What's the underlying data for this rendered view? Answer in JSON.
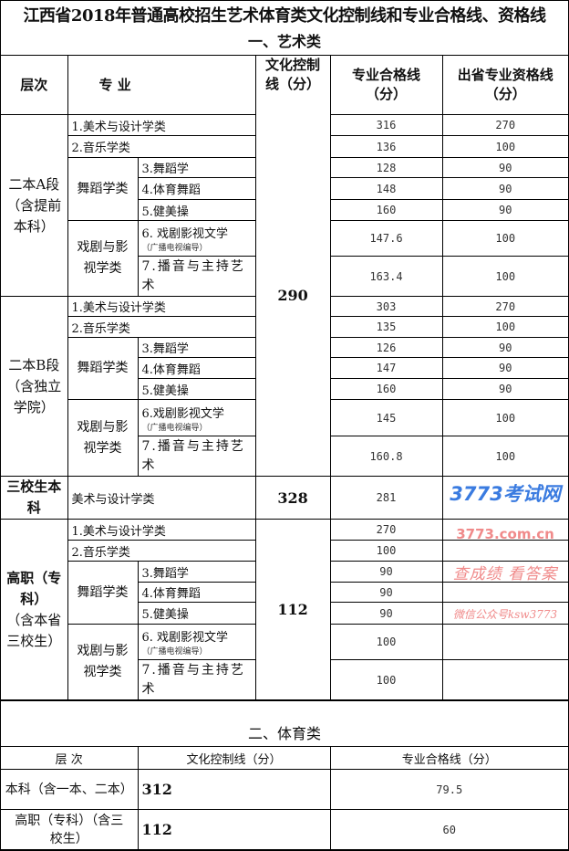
{
  "title": "江西省2018年普通高校招生艺术体育类文化控制线和专业合格线、资格线",
  "art": {
    "section": "一、艺术类",
    "headers": {
      "level": "层次",
      "major": "专 业",
      "culture": "文化控制线（分）",
      "pro": "专业合格线（分）",
      "out": "出省专业资格线（分）"
    },
    "group_a": {
      "level": "二本A段（含提前本科）",
      "r1": {
        "name": "1.美术与设计学类",
        "pro": "316",
        "out": "270"
      },
      "r2": {
        "name": "2.音乐学类",
        "pro": "136",
        "out": "100"
      },
      "dance": "舞蹈学类",
      "r3": {
        "name": "3.舞蹈学",
        "pro": "128",
        "out": "90"
      },
      "r4": {
        "name": "4.体育舞蹈",
        "pro": "148",
        "out": "90"
      },
      "r5": {
        "name": "5.健美操",
        "pro": "160",
        "out": "90"
      },
      "drama": "戏剧与影视学类",
      "r6": {
        "name": "6. 戏剧影视文学",
        "note": "（广播电视编导）",
        "pro": "147.6",
        "out": "100"
      },
      "r7": {
        "name": "7.播音与主持艺术",
        "pro": "163.4",
        "out": "100"
      }
    },
    "culture_ab": "290",
    "group_b": {
      "level": "二本B段（含独立学院）",
      "r1": {
        "name": "1.美术与设计学类",
        "pro": "303",
        "out": "270"
      },
      "r2": {
        "name": "2.音乐学类",
        "pro": "135",
        "out": "100"
      },
      "dance": "舞蹈学类",
      "r3": {
        "name": "3.舞蹈学",
        "pro": "126",
        "out": "90"
      },
      "r4": {
        "name": "4.体育舞蹈",
        "pro": "147",
        "out": "90"
      },
      "r5": {
        "name": "5.健美操",
        "pro": "160",
        "out": "90"
      },
      "drama": "戏剧与影视学类",
      "r6": {
        "name": "6.戏剧影视文学",
        "note": "（广播电视编导）",
        "pro": "145",
        "out": "100"
      },
      "r7": {
        "name": "7.播音与主持艺术",
        "pro": "160.8",
        "out": "100"
      }
    },
    "group_s": {
      "level": "三校生本科",
      "name": "美术与设计学类",
      "culture": "328",
      "pro": "281"
    },
    "group_h": {
      "level_bold": "高职（专科）",
      "level": "（含本省三校生）",
      "culture": "112",
      "r1": {
        "name": "1.美术与设计学类",
        "pro": "270"
      },
      "r2": {
        "name": "2.音乐学类",
        "pro": "100"
      },
      "dance": "舞蹈学类",
      "r3": {
        "name": "3.舞蹈学",
        "pro": "90"
      },
      "r4": {
        "name": "4.体育舞蹈",
        "pro": "90"
      },
      "r5": {
        "name": "5.健美操",
        "pro": "90"
      },
      "drama": "戏剧与影视学类",
      "r6": {
        "name": "6. 戏剧影视文学",
        "note": "（广播电视编导）",
        "pro": "100"
      },
      "r7": {
        "name": "7.播音与主持艺术",
        "pro": "100"
      }
    }
  },
  "sports": {
    "section": "二、体育类",
    "headers": {
      "level": "层 次",
      "culture": "文化控制线（分）",
      "pro": "专业合格线（分）"
    },
    "rows": [
      {
        "level": "本科（含一本、二本）",
        "culture": "312",
        "pro": "79.5"
      },
      {
        "level": "高职（专科）（含三校生）",
        "culture": "112",
        "pro": "60"
      }
    ]
  },
  "watermark": {
    "logo": "3773考试网",
    "url": "3773.com.cn",
    "slogan": "查成绩 看答案",
    "wechat": "微信公众号ksw3773",
    "blue": "#3a7be0",
    "pink": "#f08a8a"
  }
}
